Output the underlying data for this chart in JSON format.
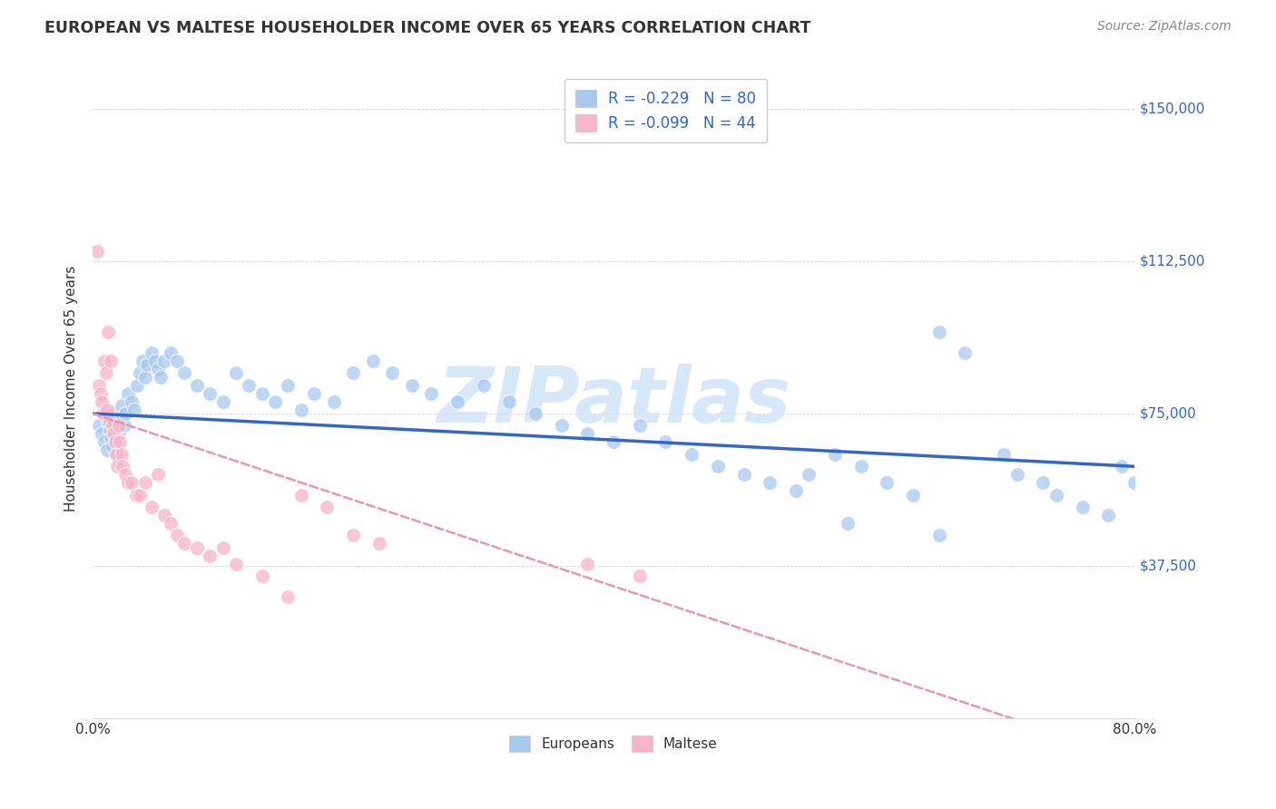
{
  "title": "EUROPEAN VS MALTESE HOUSEHOLDER INCOME OVER 65 YEARS CORRELATION CHART",
  "source": "Source: ZipAtlas.com",
  "ylabel": "Householder Income Over 65 years",
  "xlim": [
    0,
    0.8
  ],
  "ylim": [
    0,
    162500
  ],
  "yticks": [
    0,
    37500,
    75000,
    112500,
    150000
  ],
  "ytick_labels": [
    "",
    "$37,500",
    "$75,000",
    "$112,500",
    "$150,000"
  ],
  "xticks": [
    0.0,
    0.1,
    0.2,
    0.3,
    0.4,
    0.5,
    0.6,
    0.7,
    0.8
  ],
  "xtick_labels": [
    "0.0%",
    "",
    "",
    "",
    "",
    "",
    "",
    "",
    "80.0%"
  ],
  "r_european": -0.229,
  "n_european": 80,
  "r_maltese": -0.099,
  "n_maltese": 44,
  "european_color": "#a8c8f0",
  "maltese_color": "#f8b4c8",
  "trendline_european_color": "#3366cc",
  "trendline_maltese_color": "#e896b0",
  "watermark": "ZIPatlas",
  "watermark_color": "#d0e4f7",
  "european_x": [
    0.005,
    0.007,
    0.009,
    0.011,
    0.012,
    0.013,
    0.014,
    0.015,
    0.016,
    0.017,
    0.018,
    0.019,
    0.02,
    0.021,
    0.022,
    0.024,
    0.025,
    0.027,
    0.03,
    0.032,
    0.034,
    0.036,
    0.038,
    0.04,
    0.042,
    0.045,
    0.048,
    0.05,
    0.052,
    0.055,
    0.06,
    0.065,
    0.07,
    0.08,
    0.09,
    0.1,
    0.11,
    0.12,
    0.13,
    0.14,
    0.15,
    0.16,
    0.17,
    0.185,
    0.2,
    0.215,
    0.23,
    0.245,
    0.26,
    0.28,
    0.3,
    0.32,
    0.34,
    0.36,
    0.38,
    0.4,
    0.42,
    0.44,
    0.46,
    0.48,
    0.5,
    0.52,
    0.54,
    0.55,
    0.57,
    0.59,
    0.61,
    0.63,
    0.65,
    0.67,
    0.7,
    0.71,
    0.73,
    0.74,
    0.76,
    0.78,
    0.79,
    0.8,
    0.65,
    0.58
  ],
  "european_y": [
    72000,
    70000,
    68000,
    66000,
    73000,
    71000,
    69000,
    67000,
    75000,
    72000,
    68000,
    65000,
    70000,
    74000,
    77000,
    72000,
    75000,
    80000,
    78000,
    76000,
    82000,
    85000,
    88000,
    84000,
    87000,
    90000,
    88000,
    86000,
    84000,
    88000,
    90000,
    88000,
    85000,
    82000,
    80000,
    78000,
    85000,
    82000,
    80000,
    78000,
    82000,
    76000,
    80000,
    78000,
    85000,
    88000,
    85000,
    82000,
    80000,
    78000,
    82000,
    78000,
    75000,
    72000,
    70000,
    68000,
    72000,
    68000,
    65000,
    62000,
    60000,
    58000,
    56000,
    60000,
    65000,
    62000,
    58000,
    55000,
    95000,
    90000,
    65000,
    60000,
    58000,
    55000,
    52000,
    50000,
    62000,
    58000,
    45000,
    48000
  ],
  "maltese_x": [
    0.003,
    0.005,
    0.006,
    0.007,
    0.008,
    0.009,
    0.01,
    0.011,
    0.012,
    0.013,
    0.014,
    0.015,
    0.016,
    0.017,
    0.018,
    0.019,
    0.02,
    0.021,
    0.022,
    0.023,
    0.025,
    0.027,
    0.03,
    0.033,
    0.036,
    0.04,
    0.045,
    0.05,
    0.055,
    0.06,
    0.065,
    0.07,
    0.08,
    0.09,
    0.1,
    0.11,
    0.13,
    0.15,
    0.16,
    0.18,
    0.2,
    0.22,
    0.38,
    0.42
  ],
  "maltese_y": [
    115000,
    82000,
    80000,
    78000,
    75000,
    88000,
    85000,
    76000,
    95000,
    73000,
    88000,
    72000,
    70000,
    68000,
    65000,
    62000,
    72000,
    68000,
    65000,
    62000,
    60000,
    58000,
    58000,
    55000,
    55000,
    58000,
    52000,
    60000,
    50000,
    48000,
    45000,
    43000,
    42000,
    40000,
    42000,
    38000,
    35000,
    30000,
    55000,
    52000,
    45000,
    43000,
    38000,
    35000
  ]
}
